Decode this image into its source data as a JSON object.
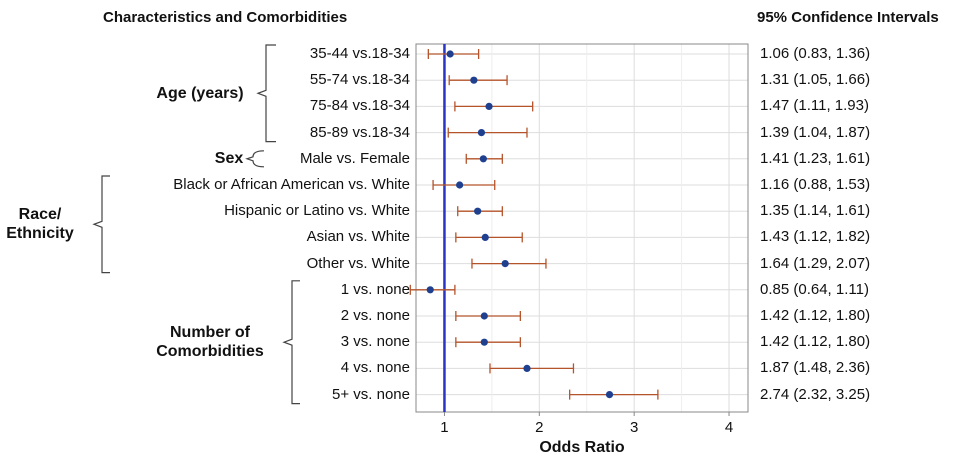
{
  "headers": {
    "left": "Characteristics and Comorbidities",
    "right": "95% Confidence Intervals"
  },
  "groups": [
    {
      "label_lines": [
        "Age (years)"
      ],
      "rows": [
        0,
        3
      ]
    },
    {
      "label_lines": [
        "Sex"
      ],
      "rows": [
        4,
        4
      ]
    },
    {
      "label_lines": [
        "Race/",
        "Ethnicity"
      ],
      "rows": [
        5,
        8
      ]
    },
    {
      "label_lines": [
        "Number of",
        "Comorbidities"
      ],
      "rows": [
        9,
        13
      ]
    }
  ],
  "chart_data": {
    "type": "scatter",
    "subtype": "forest-plot",
    "xlabel": "Odds Ratio",
    "xlim": [
      0.7,
      4.2
    ],
    "xticks": [
      1,
      2,
      3,
      4
    ],
    "reference_line": 1,
    "grid": true,
    "rows": [
      {
        "label": "35-44 vs.18-34",
        "estimate": 1.06,
        "lower": 0.83,
        "upper": 1.36,
        "ci_text": "1.06 (0.83, 1.36)"
      },
      {
        "label": "55-74 vs.18-34",
        "estimate": 1.31,
        "lower": 1.05,
        "upper": 1.66,
        "ci_text": "1.31 (1.05, 1.66)"
      },
      {
        "label": "75-84 vs.18-34",
        "estimate": 1.47,
        "lower": 1.11,
        "upper": 1.93,
        "ci_text": "1.47 (1.11, 1.93)"
      },
      {
        "label": "85-89 vs.18-34",
        "estimate": 1.39,
        "lower": 1.04,
        "upper": 1.87,
        "ci_text": "1.39 (1.04, 1.87)"
      },
      {
        "label": "Male vs. Female",
        "estimate": 1.41,
        "lower": 1.23,
        "upper": 1.61,
        "ci_text": "1.41 (1.23, 1.61)"
      },
      {
        "label": "Black or African American vs. White",
        "estimate": 1.16,
        "lower": 0.88,
        "upper": 1.53,
        "ci_text": "1.16 (0.88, 1.53)"
      },
      {
        "label": "Hispanic or Latino vs. White",
        "estimate": 1.35,
        "lower": 1.14,
        "upper": 1.61,
        "ci_text": "1.35 (1.14, 1.61)"
      },
      {
        "label": "Asian vs. White",
        "estimate": 1.43,
        "lower": 1.12,
        "upper": 1.82,
        "ci_text": "1.43 (1.12, 1.82)"
      },
      {
        "label": "Other vs. White",
        "estimate": 1.64,
        "lower": 1.29,
        "upper": 2.07,
        "ci_text": "1.64 (1.29, 2.07)"
      },
      {
        "label": "1 vs. none",
        "estimate": 0.85,
        "lower": 0.64,
        "upper": 1.11,
        "ci_text": "0.85 (0.64, 1.11)"
      },
      {
        "label": "2 vs. none",
        "estimate": 1.42,
        "lower": 1.12,
        "upper": 1.8,
        "ci_text": "1.42 (1.12, 1.80)"
      },
      {
        "label": "3 vs. none",
        "estimate": 1.42,
        "lower": 1.12,
        "upper": 1.8,
        "ci_text": "1.42 (1.12, 1.80)"
      },
      {
        "label": "4 vs. none",
        "estimate": 1.87,
        "lower": 1.48,
        "upper": 2.36,
        "ci_text": "1.87 (1.48, 2.36)"
      },
      {
        "label": "5+ vs. none",
        "estimate": 2.74,
        "lower": 2.32,
        "upper": 3.25,
        "ci_text": "2.74 (2.32, 3.25)"
      }
    ],
    "colors": {
      "point": "#1f3f8f",
      "ci": "#b5532a",
      "reference_line": "#2a35c7",
      "grid": "#dddddd",
      "frame": "#888888"
    }
  }
}
